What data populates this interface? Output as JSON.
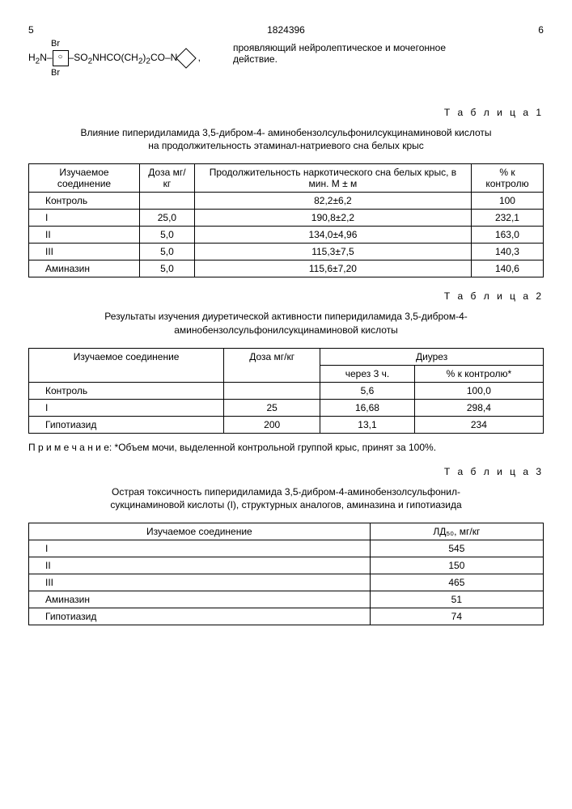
{
  "page": {
    "left_num": "5",
    "doc_num": "1824396",
    "right_num": "6"
  },
  "top_text": "проявляющий нейролептическое и мочегонное действие.",
  "formula_text": "H₂N–⟨Br⟩–SO₂NHCO(CH₂)₂CO–N⟨ ⟩ ,",
  "table1": {
    "label": "Т а б л и ц а  1",
    "title": "Влияние пиперидиламида 3,5-дибром-4- аминобензолсульфонилсукцинаминовой кислоты на продолжительность этаминал-натриевого сна белых крыс",
    "headers": [
      "Изучаемое соединение",
      "Доза мг/кг",
      "Продолжительность наркотического сна белых крыс, в мин. M ± м",
      "% к контролю"
    ],
    "rows": [
      [
        "Контроль",
        "",
        "82,2±6,2",
        "100"
      ],
      [
        "I",
        "25,0",
        "190,8±2,2",
        "232,1"
      ],
      [
        "II",
        "5,0",
        "134,0±4,96",
        "163,0"
      ],
      [
        "III",
        "5,0",
        "115,3±7,5",
        "140,3"
      ],
      [
        "Аминазин",
        "5,0",
        "115,6±7,20",
        "140,6"
      ]
    ]
  },
  "table2": {
    "label": "Т а б л и ц а  2",
    "title": "Результаты изучения диуретической активности пиперидиламида 3,5-дибром-4-аминобензолсульфонилсукцинаминовой кислоты",
    "headers_top": [
      "Изучаемое соединение",
      "Доза мг/кг",
      "Диурез"
    ],
    "headers_sub": [
      "через 3 ч.",
      "% к контролю*"
    ],
    "rows": [
      [
        "Контроль",
        "",
        "5,6",
        "100,0"
      ],
      [
        "I",
        "25",
        "16,68",
        "298,4"
      ],
      [
        "Гипотиазид",
        "200",
        "13,1",
        "234"
      ]
    ],
    "note": "П р и м е ч а н и е: *Объем мочи, выделенной контрольной группой крыс, принят за 100%."
  },
  "table3": {
    "label": "Т а б л и ц а  3",
    "title": "Острая токсичность пиперидиламида 3,5-дибром-4-аминобензолсульфонил-сукцинаминовой кислоты (I), структурных аналогов, аминазина и гипотиазида",
    "headers": [
      "Изучаемое соединение",
      "ЛД₅₀, мг/кг"
    ],
    "rows": [
      [
        "I",
        "545"
      ],
      [
        "II",
        "150"
      ],
      [
        "III",
        "465"
      ],
      [
        "Аминазин",
        "51"
      ],
      [
        "Гипотиазид",
        "74"
      ]
    ]
  }
}
